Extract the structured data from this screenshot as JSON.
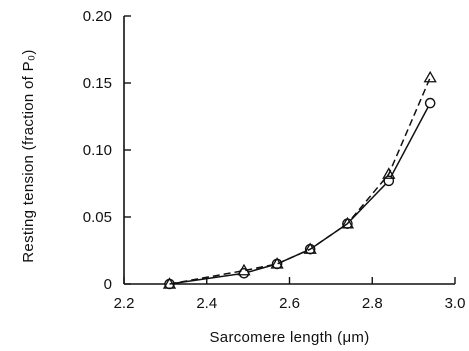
{
  "chart_data": {
    "type": "line",
    "title": "",
    "xlabel": "Sarcomere length (μm)",
    "ylabel": "Resting tension (fraction of P₀)",
    "xlim": [
      2.2,
      3.0
    ],
    "ylim": [
      0,
      0.2
    ],
    "xticks": [
      2.2,
      2.4,
      2.6,
      2.8,
      3.0
    ],
    "xtick_labels": [
      "2.2",
      "2.4",
      "2.6",
      "2.8",
      "3.0"
    ],
    "yticks": [
      0,
      0.05,
      0.1,
      0.15,
      0.2
    ],
    "ytick_labels": [
      "0",
      "0.05",
      "0.10",
      "0.15",
      "0.20"
    ],
    "grid": false,
    "legend": "none",
    "series": [
      {
        "marker": "circle",
        "line_style": "solid",
        "color": "#111111",
        "x": [
          2.31,
          2.49,
          2.57,
          2.65,
          2.74,
          2.84,
          2.94
        ],
        "y": [
          0.0,
          0.008,
          0.015,
          0.026,
          0.045,
          0.077,
          0.135
        ]
      },
      {
        "marker": "triangle",
        "line_style": "dashed",
        "color": "#111111",
        "x": [
          2.31,
          2.49,
          2.57,
          2.65,
          2.74,
          2.84,
          2.94
        ],
        "y": [
          0.0,
          0.01,
          0.015,
          0.026,
          0.045,
          0.082,
          0.154
        ]
      }
    ]
  }
}
